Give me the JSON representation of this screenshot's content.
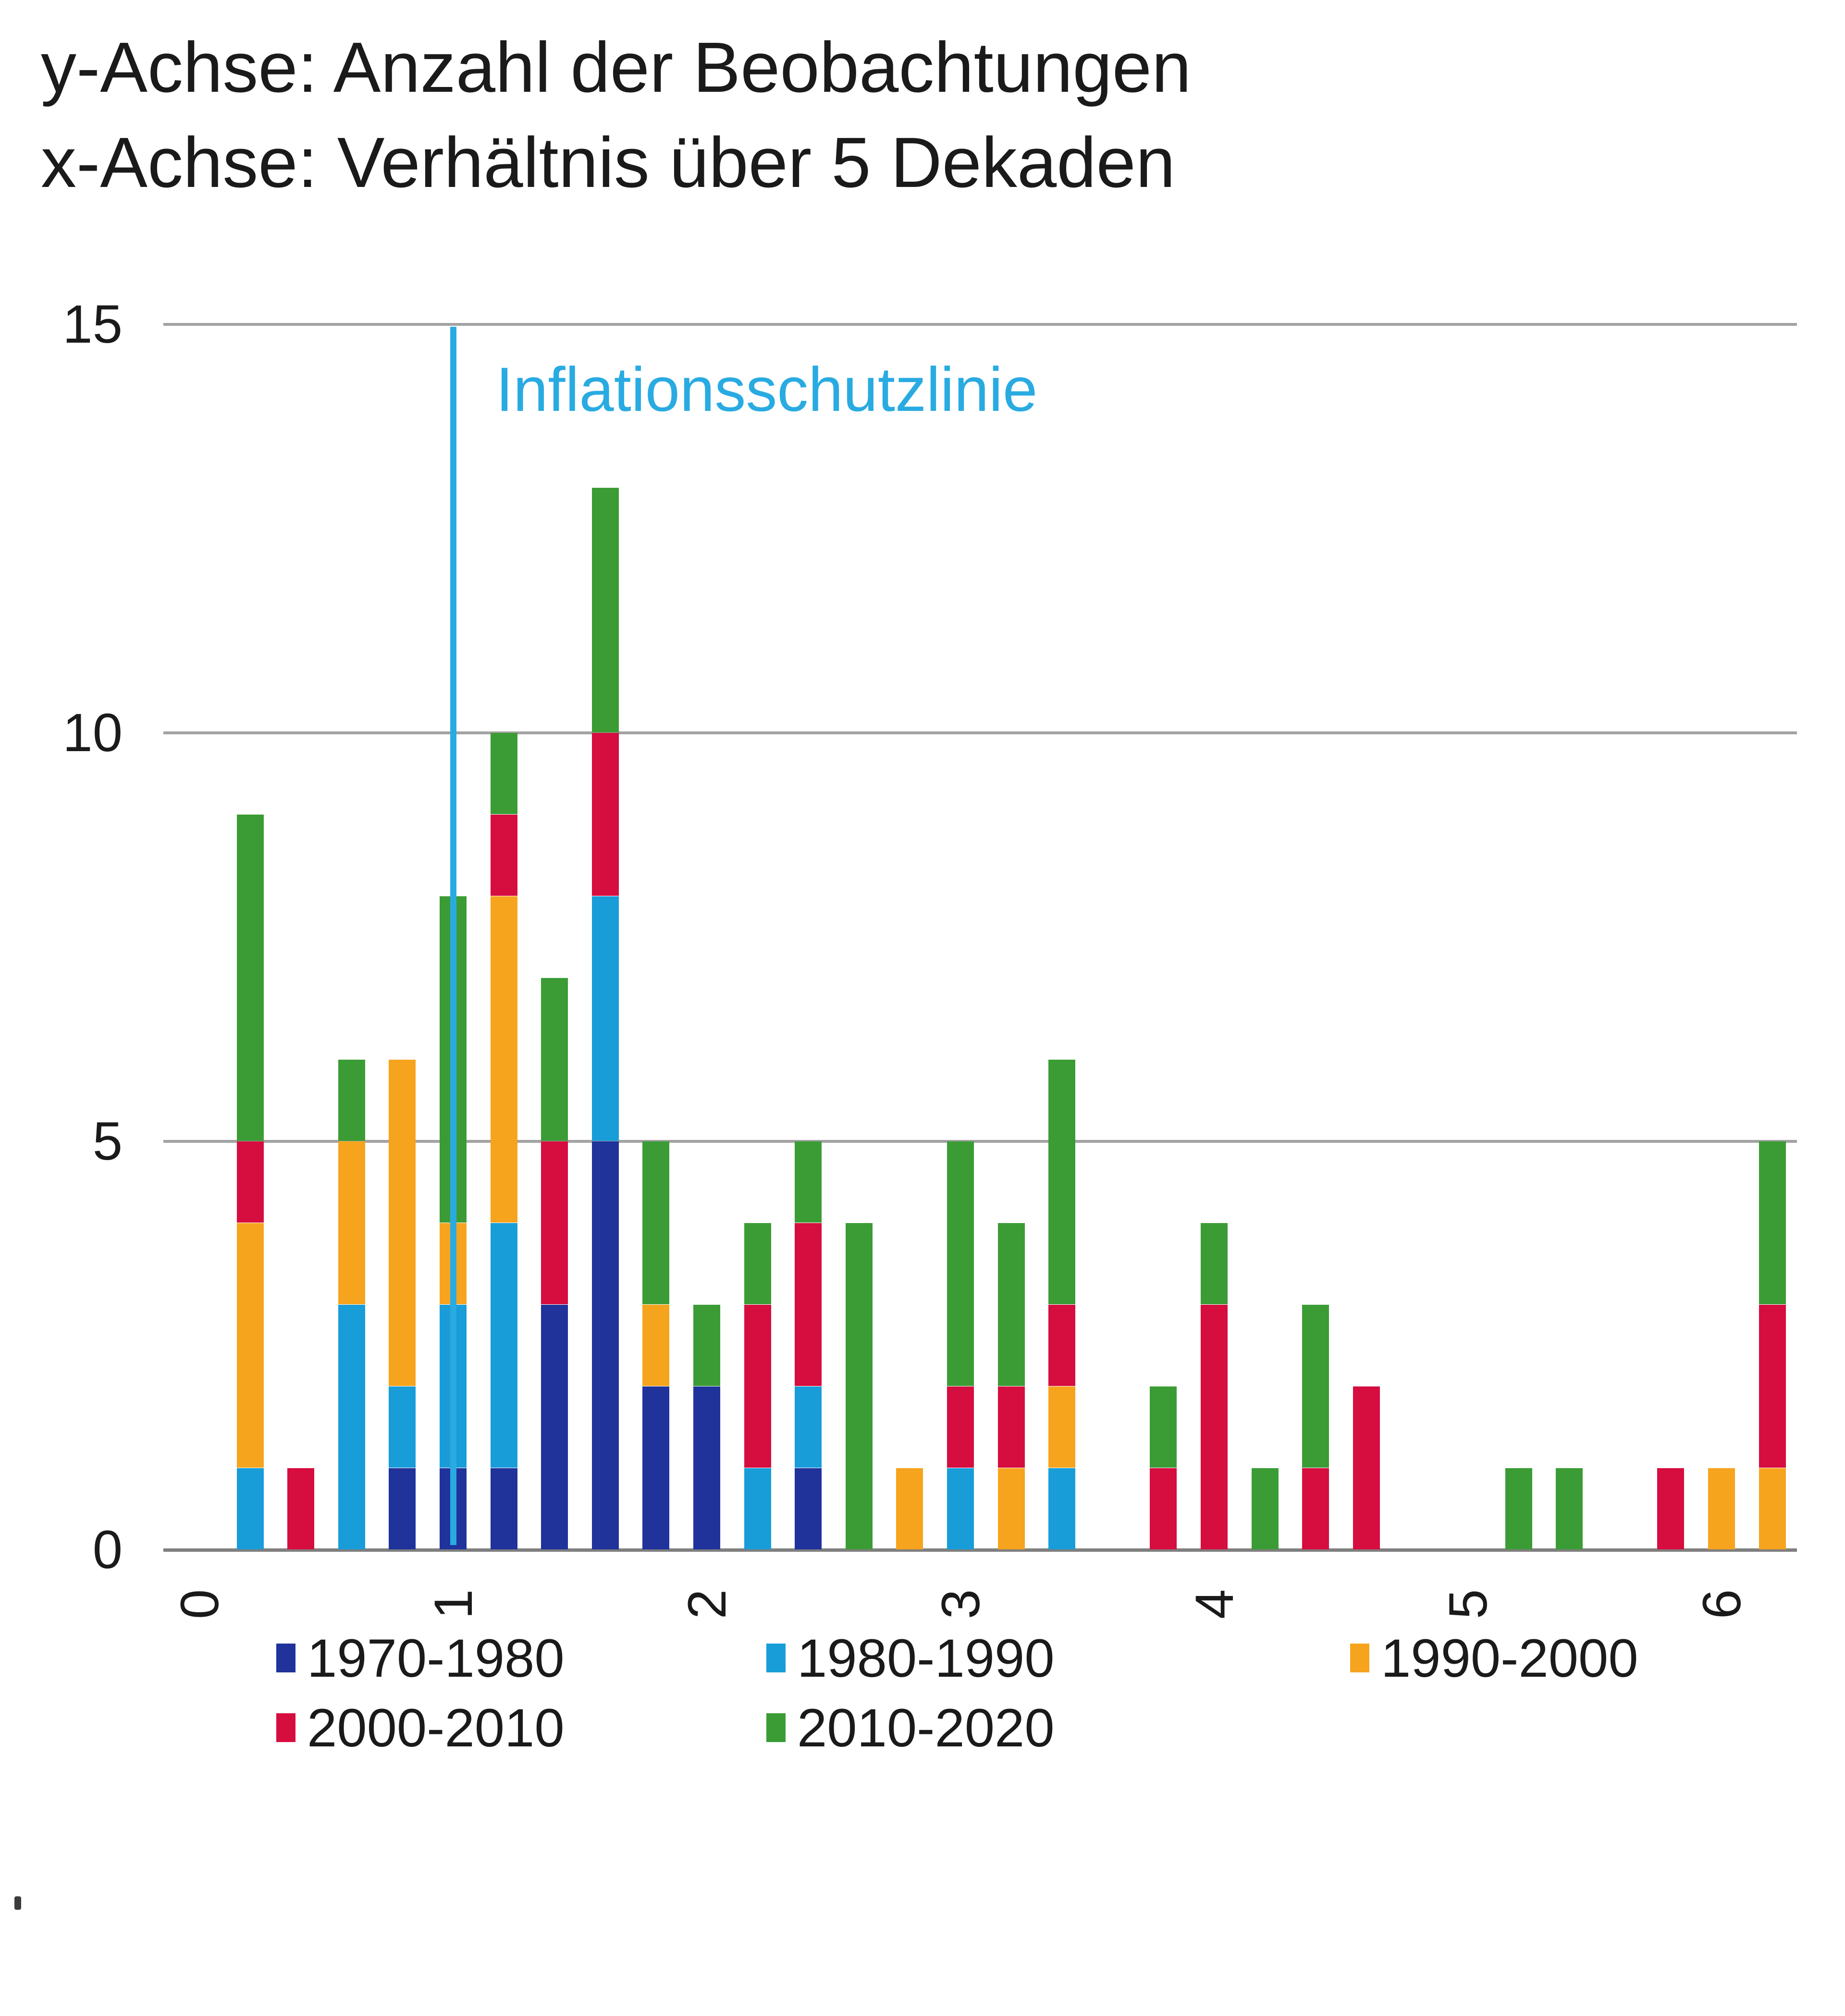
{
  "page": {
    "title_line1": "y-Achse: Anzahl der Beobachtungen",
    "title_line2": "x-Achse: Verhältnis über 5 Dekaden"
  },
  "annotation": {
    "label": "Inflationsschutzlinie",
    "color": "#29abe2"
  },
  "chart_data": {
    "type": "bar",
    "stacked": true,
    "title": "",
    "xlabel": "Verhältnis über 5 Dekaden",
    "ylabel": "Anzahl der Beobachtungen",
    "ylim": [
      0,
      15
    ],
    "y_ticks": [
      0,
      5,
      10,
      15
    ],
    "x_ticks": [
      0,
      1,
      2,
      3,
      4,
      5,
      6
    ],
    "grid": "horizontal",
    "legend_position": "bottom",
    "bin_width": 0.2,
    "x": [
      0.2,
      0.4,
      0.6,
      0.8,
      1.0,
      1.2,
      1.4,
      1.6,
      1.8,
      2.0,
      2.2,
      2.4,
      2.6,
      2.8,
      3.0,
      3.2,
      3.4,
      3.8,
      4.0,
      4.2,
      4.4,
      4.6,
      5.2,
      5.4,
      5.8,
      6.0,
      6.2
    ],
    "series": [
      {
        "name": "1970-1980",
        "color": "#1f339b",
        "values": [
          0,
          0,
          0,
          1,
          1,
          1,
          3,
          5,
          2,
          2,
          0,
          1,
          0,
          0,
          0,
          0,
          0,
          0,
          0,
          0,
          0,
          0,
          0,
          0,
          0,
          0,
          0
        ]
      },
      {
        "name": "1980-1990",
        "color": "#189dd9",
        "values": [
          1,
          0,
          3,
          1,
          2,
          3,
          0,
          3,
          0,
          0,
          1,
          1,
          0,
          0,
          1,
          0,
          1,
          0,
          0,
          0,
          0,
          0,
          0,
          0,
          0,
          0,
          0
        ]
      },
      {
        "name": "1990-2000",
        "color": "#f6a41d",
        "values": [
          3,
          0,
          2,
          4,
          1,
          4,
          0,
          0,
          1,
          0,
          0,
          0,
          0,
          1,
          0,
          1,
          1,
          0,
          0,
          0,
          0,
          0,
          0,
          0,
          0,
          1,
          1
        ]
      },
      {
        "name": "2000-2010",
        "color": "#d60d3f",
        "values": [
          1,
          1,
          0,
          0,
          0,
          1,
          2,
          2,
          0,
          0,
          2,
          2,
          0,
          0,
          1,
          1,
          1,
          1,
          3,
          0,
          1,
          2,
          0,
          0,
          1,
          0,
          2
        ]
      },
      {
        "name": "2010-2020",
        "color": "#3b9c35",
        "values": [
          4,
          0,
          1,
          0,
          4,
          1,
          2,
          3,
          2,
          1,
          1,
          1,
          4,
          0,
          3,
          2,
          3,
          1,
          1,
          1,
          2,
          0,
          1,
          1,
          0,
          0,
          2
        ]
      }
    ],
    "reference_line": {
      "x": 1,
      "label": "Inflationsschutzlinie",
      "color": "#29abe2"
    }
  },
  "colors": {
    "grid": "#a3a3a3",
    "axis": "#7f7f7f",
    "text": "#1a1a1a"
  }
}
